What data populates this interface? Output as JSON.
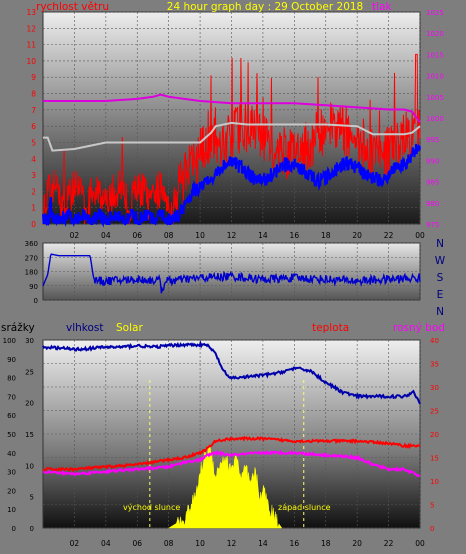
{
  "chart_data": [
    {
      "type": "line",
      "title": "24 hour graph day : 29 October 2018",
      "left_axis_label": "rychlost větru",
      "right_axis_label": "tlak",
      "left_ticks": [
        "0",
        "1",
        "2",
        "3",
        "4",
        "5",
        "6",
        "7",
        "8",
        "9",
        "10",
        "11",
        "12",
        "13"
      ],
      "right_ticks": [
        "975",
        "980",
        "985",
        "990",
        "995",
        "1000",
        "1005",
        "1010",
        "1015",
        "1020",
        "1025"
      ],
      "x_ticks": [
        "02",
        "04",
        "06",
        "08",
        "10",
        "12",
        "14",
        "16",
        "18",
        "20",
        "22",
        "00"
      ],
      "xlim": [
        0,
        24
      ],
      "ylim_left": [
        0,
        13
      ],
      "ylim_right": [
        975,
        1025
      ],
      "colors": {
        "pressure": "#dd00dd",
        "gust": "#ff0000",
        "wind": "#0000ff",
        "avg_gust": "#c8c8c8"
      },
      "series": [
        {
          "key": "pressure",
          "axis": "right",
          "x": [
            0,
            2,
            4,
            6,
            7,
            7.5,
            8,
            9,
            10,
            12,
            14,
            16,
            18,
            20,
            22,
            23,
            23.5,
            24
          ],
          "y": [
            1004,
            1004,
            1004,
            1004.5,
            1005,
            1005.5,
            1005,
            1004.5,
            1004,
            1003.5,
            1003.5,
            1003.5,
            1003,
            1002.5,
            1002,
            1002,
            1001.5,
            999
          ]
        },
        {
          "key": "avg_gust",
          "axis": "left",
          "x": [
            0,
            0.3,
            0.6,
            2,
            4,
            6,
            7,
            8,
            9,
            10,
            10.7,
            11,
            12,
            13,
            14,
            16,
            18,
            20,
            21,
            22,
            23,
            23.5,
            24
          ],
          "y": [
            5.3,
            5.3,
            4.5,
            4.6,
            5,
            5,
            5,
            5,
            5,
            5,
            5.6,
            6,
            6.2,
            6.1,
            6.1,
            6.1,
            6.1,
            6,
            5.5,
            5.5,
            5.5,
            5.6,
            6
          ]
        }
      ]
    },
    {
      "type": "line",
      "title": "",
      "ylabel": "",
      "y_ticks": [
        "0",
        "90",
        "180",
        "270",
        "360"
      ],
      "right_labels": [
        "N",
        "W",
        "S",
        "E",
        "N"
      ],
      "ylim": [
        0,
        360
      ],
      "xlim": [
        0,
        24
      ],
      "colors": {
        "direction": "#0000cc"
      },
      "series": [
        {
          "key": "direction",
          "x": [
            0,
            0.3,
            0.5,
            1,
            2,
            3,
            3.2,
            3.3,
            4,
            6,
            8,
            10,
            12,
            14,
            16,
            18,
            20,
            22,
            24
          ],
          "y": [
            90,
            160,
            290,
            280,
            280,
            280,
            150,
            120,
            120,
            130,
            120,
            140,
            150,
            130,
            140,
            130,
            120,
            130,
            140
          ]
        }
      ]
    },
    {
      "type": "line",
      "labels": {
        "rain": "srážky",
        "humidity": "vlhkost",
        "solar": "Solar",
        "temperature": "teplota",
        "dew": "rosný bod"
      },
      "rain_ticks": [
        "0",
        "10",
        "20",
        "30",
        "40",
        "50",
        "60",
        "70",
        "80",
        "90",
        "100"
      ],
      "humidity_ticks": [
        "0",
        "5",
        "10",
        "15",
        "20",
        "25",
        "30"
      ],
      "temp_ticks": [
        "0",
        "5",
        "10",
        "15",
        "20",
        "25",
        "30",
        "35",
        "40"
      ],
      "x_ticks": [
        "02",
        "04",
        "06",
        "08",
        "10",
        "12",
        "14",
        "16",
        "18",
        "20",
        "22",
        "00"
      ],
      "annotations": {
        "sunrise": "východ slunce",
        "sunset": "západ slunce"
      },
      "xlim": [
        0,
        24
      ],
      "ylim_temp": [
        0,
        40
      ],
      "colors": {
        "humidity": "#0000aa",
        "temperature": "#ff0000",
        "dew": "#ff00ff",
        "solar": "#ffff00",
        "markers": "#ffff66"
      },
      "sunrise_hour": 6.8,
      "sunset_hour": 16.6,
      "series": [
        {
          "key": "humidity",
          "axis": "temp",
          "x": [
            0,
            1,
            2,
            3,
            4,
            5,
            6,
            7,
            8,
            9,
            10,
            10.5,
            11,
            11.4,
            11.8,
            12.5,
            14,
            15,
            16,
            17,
            18,
            19,
            20,
            21,
            22,
            23,
            23.6,
            24
          ],
          "y": [
            38.5,
            38.3,
            38,
            38.2,
            38.5,
            38.5,
            38.8,
            38.5,
            38.8,
            39,
            39,
            38.8,
            37,
            34,
            32,
            32,
            32.5,
            33,
            34,
            33.5,
            31,
            29,
            28,
            28,
            28,
            28,
            29,
            26.5
          ]
        },
        {
          "key": "temperature",
          "axis": "temp",
          "x": [
            0,
            2,
            4,
            6,
            8,
            9,
            10,
            10.5,
            11,
            12,
            14,
            16,
            18,
            20,
            22,
            23,
            24
          ],
          "y": [
            12.5,
            12.5,
            13,
            13.5,
            14.5,
            15,
            16,
            17,
            18.5,
            19,
            19,
            18.5,
            18.5,
            18.5,
            18,
            17.5,
            17.5
          ]
        },
        {
          "key": "dew",
          "axis": "temp",
          "x": [
            0,
            2,
            4,
            6,
            8,
            9,
            10,
            10.5,
            11,
            12,
            14,
            16,
            18,
            20,
            21,
            22,
            23,
            24
          ],
          "y": [
            12,
            11.5,
            12,
            12.5,
            13,
            14,
            14.5,
            15.5,
            16,
            15.5,
            16,
            16,
            15.5,
            15,
            13.5,
            12.5,
            12.5,
            11
          ]
        },
        {
          "key": "solar",
          "axis": "temp",
          "x": [
            8,
            8.5,
            9,
            9.3,
            9.6,
            9.8,
            10,
            10.3,
            10.5,
            10.7,
            11,
            11.3,
            11.6,
            12,
            12.3,
            12.6,
            12.9,
            13.2,
            13.5,
            13.8,
            14.1,
            14.4,
            14.7,
            15,
            15.2
          ],
          "y": [
            0,
            1,
            2,
            4,
            6,
            8,
            12,
            15,
            17,
            16,
            11,
            14,
            15,
            12,
            16,
            10,
            13,
            9,
            12,
            7,
            8,
            4,
            3,
            1,
            0
          ]
        }
      ]
    }
  ]
}
